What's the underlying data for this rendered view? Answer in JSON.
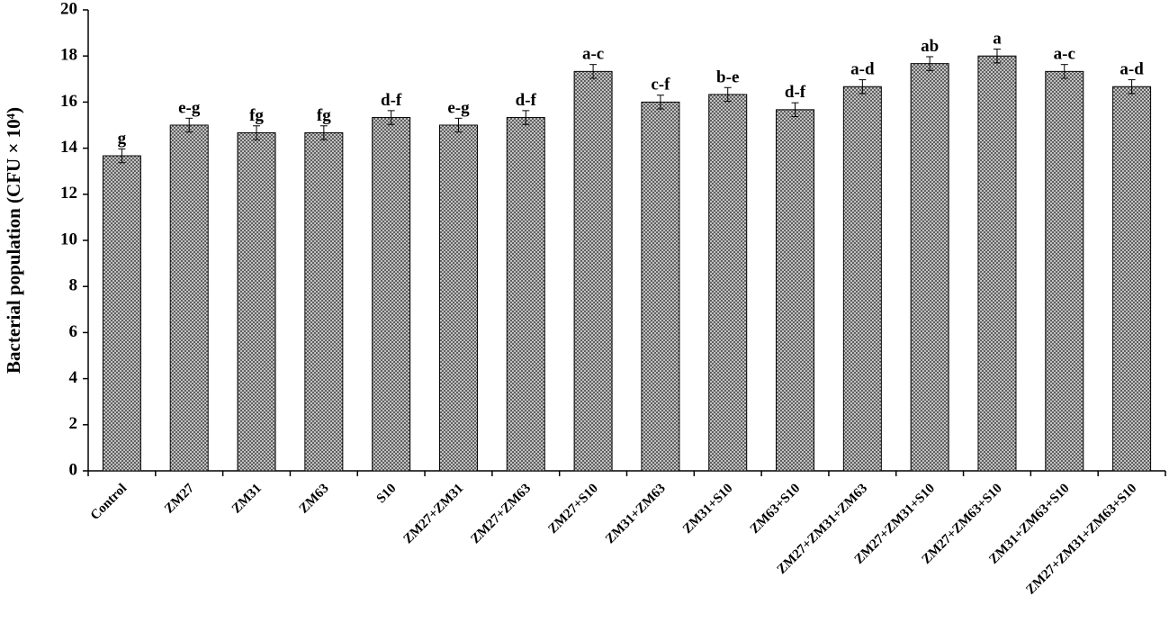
{
  "chart_data": {
    "type": "bar",
    "y_label": "Bacterial population (CFU × 10⁴)",
    "categories": [
      "Control",
      "ZM27",
      "ZM31",
      "ZM63",
      "S10",
      "ZM27+ZM31",
      "ZM27+ZM63",
      "ZM27+S10",
      "ZM31+ZM63",
      "ZM31+S10",
      "ZM63+S10",
      "ZM27+ZM31+ZM63",
      "ZM27+ZM31+S10",
      "ZM27+ZM63+S10",
      "ZM31+ZM63+S10",
      "ZM27+ZM31+ZM63+S10"
    ],
    "values": [
      13.67,
      15.0,
      14.67,
      14.67,
      15.33,
      15.0,
      15.33,
      17.33,
      16.0,
      16.33,
      15.67,
      16.67,
      17.67,
      18.0,
      17.33,
      16.67
    ],
    "errors": [
      0.3,
      0.3,
      0.3,
      0.3,
      0.3,
      0.3,
      0.3,
      0.3,
      0.3,
      0.3,
      0.3,
      0.3,
      0.3,
      0.3,
      0.3,
      0.3
    ],
    "annotations": [
      "g",
      "e-g",
      "fg",
      "fg",
      "d-f",
      "e-g",
      "d-f",
      "a-c",
      "c-f",
      "b-e",
      "d-f",
      "a-d",
      "ab",
      "a",
      "a-c",
      "a-d"
    ],
    "color": "#555555",
    "ylim": [
      0,
      20
    ],
    "yticks": [
      0,
      2,
      4,
      6,
      8,
      10,
      12,
      14,
      16,
      18,
      20
    ],
    "grid": false
  }
}
